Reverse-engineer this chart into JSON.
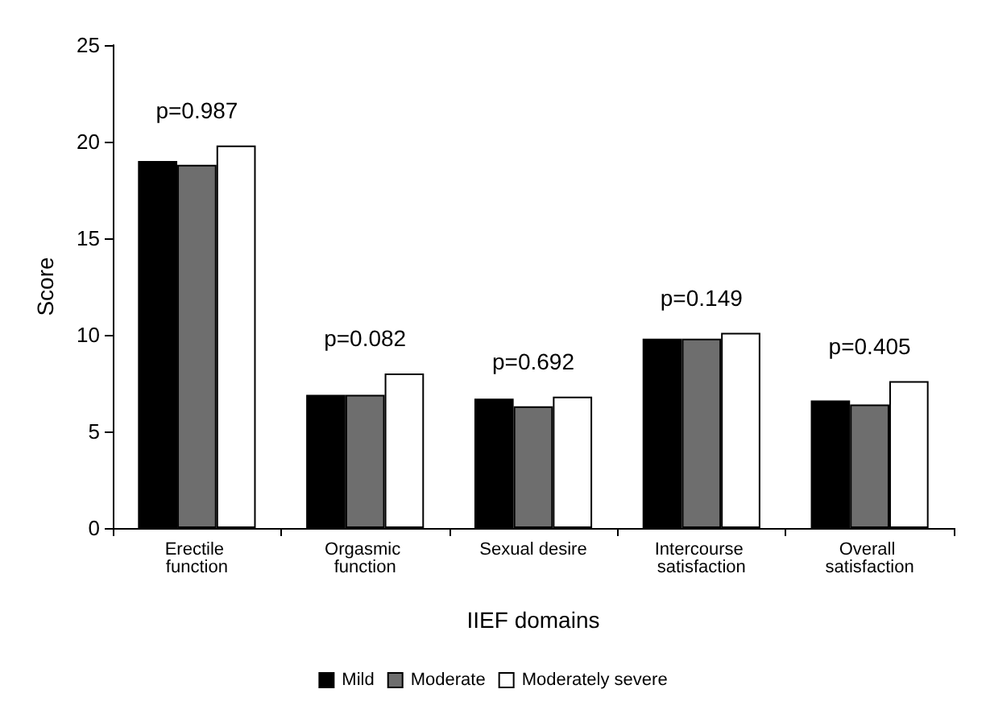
{
  "chart_data": {
    "type": "bar",
    "xlabel": "IIEF domains",
    "ylabel": "Score",
    "categories": [
      "Erectile function",
      "Orgasmic function",
      "Sexual desire",
      "Intercourse satisfaction",
      "Overall satisfaction"
    ],
    "series": [
      {
        "name": "Mild",
        "color": "#000000",
        "values": [
          19.0,
          6.9,
          6.7,
          9.8,
          6.6
        ]
      },
      {
        "name": "Moderate",
        "color": "#6e6e6e",
        "values": [
          18.8,
          6.9,
          6.3,
          9.8,
          6.4
        ]
      },
      {
        "name": "Moderately severe",
        "color": "#ffffff",
        "values": [
          19.8,
          8.0,
          6.8,
          10.1,
          7.6
        ]
      }
    ],
    "ylim": [
      0,
      25
    ],
    "yticks": [
      0,
      5,
      10,
      15,
      20,
      25
    ],
    "grid": false,
    "legend": "bottom",
    "annotations": [
      "p=0.987",
      "p=0.082",
      "p=0.692",
      "p=0.149",
      "p=0.405"
    ]
  }
}
